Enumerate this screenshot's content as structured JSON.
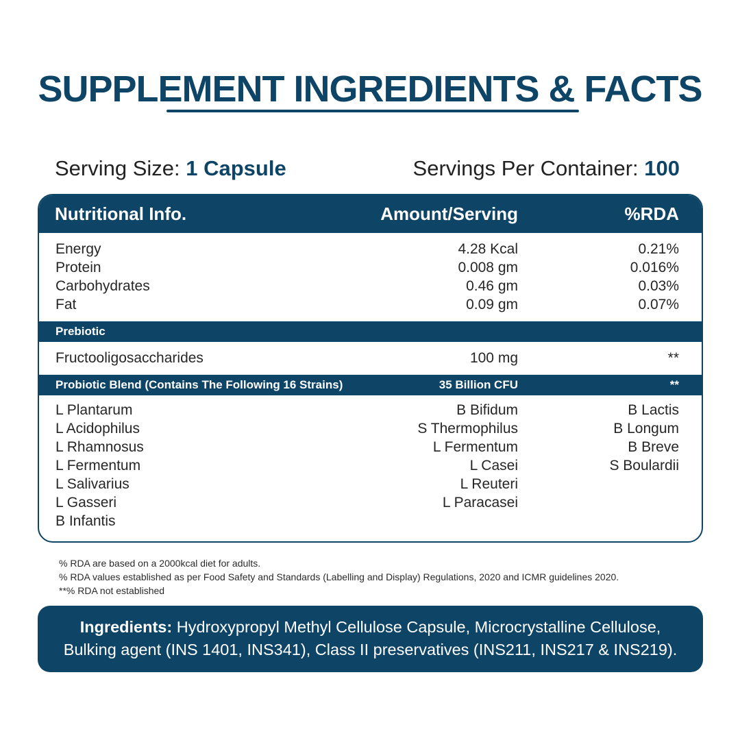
{
  "title": "SUPPLEMENT INGREDIENTS & FACTS",
  "serving": {
    "size_label": "Serving Size:",
    "size_value": "1 Capsule",
    "per_container_label": "Servings Per Container:",
    "per_container_value": "100"
  },
  "table": {
    "headers": [
      "Nutritional Info.",
      "Amount/Serving",
      "%RDA"
    ],
    "nutrients": [
      {
        "name": "Energy",
        "amount": "4.28 Kcal",
        "rda": "0.21%"
      },
      {
        "name": "Protein",
        "amount": "0.008 gm",
        "rda": "0.016%"
      },
      {
        "name": "Carbohydrates",
        "amount": "0.46 gm",
        "rda": "0.03%"
      },
      {
        "name": "Fat",
        "amount": "0.09 gm",
        "rda": "0.07%"
      }
    ],
    "prebiotic": {
      "label": "Prebiotic",
      "name": "Fructooligosaccharides",
      "amount": "100 mg",
      "rda": "**"
    },
    "probiotic": {
      "label": "Probiotic Blend (Contains The Following 16 Strains)",
      "amount": "35 Billion CFU",
      "rda": "**",
      "col1": [
        "L Plantarum",
        "L Acidophilus",
        "L Rhamnosus",
        "L Fermentum",
        "L Salivarius",
        "L Gasseri",
        "B Infantis"
      ],
      "col2": [
        "B Bifidum",
        "S Thermophilus",
        "L Fermentum",
        "L Casei",
        "L Reuteri",
        "L Paracasei"
      ],
      "col3": [
        "B Lactis",
        "B Longum",
        "B Breve",
        "S Boulardii"
      ]
    }
  },
  "notes": [
    "% RDA are based on a 2000kcal diet for adults.",
    "% RDA values established as per Food Safety and Standards (Labelling and Display) Regulations, 2020 and ICMR guidelines 2020.",
    "**% RDA not established"
  ],
  "ingredients": {
    "label": "Ingredients:",
    "line1": " Hydroxypropyl Methyl Cellulose Capsule, Microcrystalline Cellulose,",
    "line2": "Bulking agent (INS 1401, INS341), Class II preservatives (INS211, INS217 & INS219)."
  },
  "colors": {
    "brand": "#0e4466",
    "text": "#262626",
    "background": "#ffffff"
  }
}
